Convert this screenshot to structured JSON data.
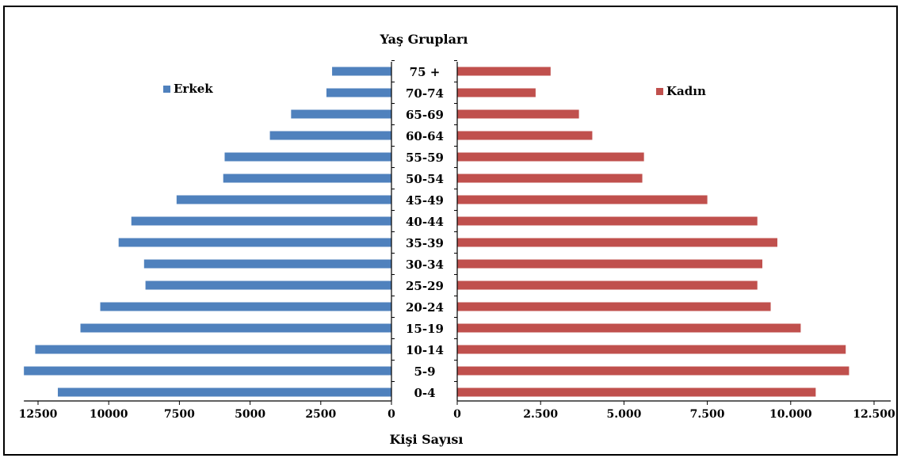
{
  "chart_data": {
    "type": "bar",
    "title": "Yaş Grupları",
    "xlabel": "Kişi Sayısı",
    "ylabel": "",
    "categories": [
      "75+",
      "70-74",
      "65-69",
      "60-64",
      "55-59",
      "50-54",
      "45-49",
      "40-44",
      "35-39",
      "30-34",
      "25-29",
      "20-24",
      "15-19",
      "10-14",
      "5-9",
      "0-4"
    ],
    "category_labels": [
      "75 +",
      "70-74",
      "65-69",
      "60-64",
      "55-59",
      "50-54",
      "45-49",
      "40-44",
      "35-39",
      "30-34",
      "25-29",
      "20-24",
      "15-19",
      "10-14",
      "5-9",
      "0-4"
    ],
    "series": [
      {
        "name": "Erkek",
        "color": "#4F81BD",
        "side": "left",
        "values": [
          2100,
          2300,
          3550,
          4300,
          5900,
          5950,
          7600,
          9200,
          9650,
          8750,
          8700,
          10300,
          11000,
          12600,
          13000,
          11800
        ]
      },
      {
        "name": "Kadın",
        "color": "#C0504D",
        "side": "right",
        "values": [
          2800,
          2350,
          3650,
          4050,
          5600,
          5550,
          7500,
          9000,
          9600,
          9150,
          9000,
          9400,
          10300,
          11650,
          11750,
          10750
        ]
      }
    ],
    "left_axis": {
      "ticks": [
        "12500",
        "10000",
        "7500",
        "5000",
        "2500",
        "0"
      ],
      "tick_values": [
        12500,
        10000,
        7500,
        5000,
        2500,
        0
      ],
      "xlim": [
        0,
        13000
      ]
    },
    "right_axis": {
      "ticks": [
        "0",
        "2.500",
        "5.000",
        "7.500",
        "10.000",
        "12.500"
      ],
      "tick_values": [
        0,
        2500,
        5000,
        7500,
        10000,
        12500
      ],
      "xlim": [
        0,
        12500
      ]
    },
    "legend_placement": "top-inside",
    "grid": false
  }
}
